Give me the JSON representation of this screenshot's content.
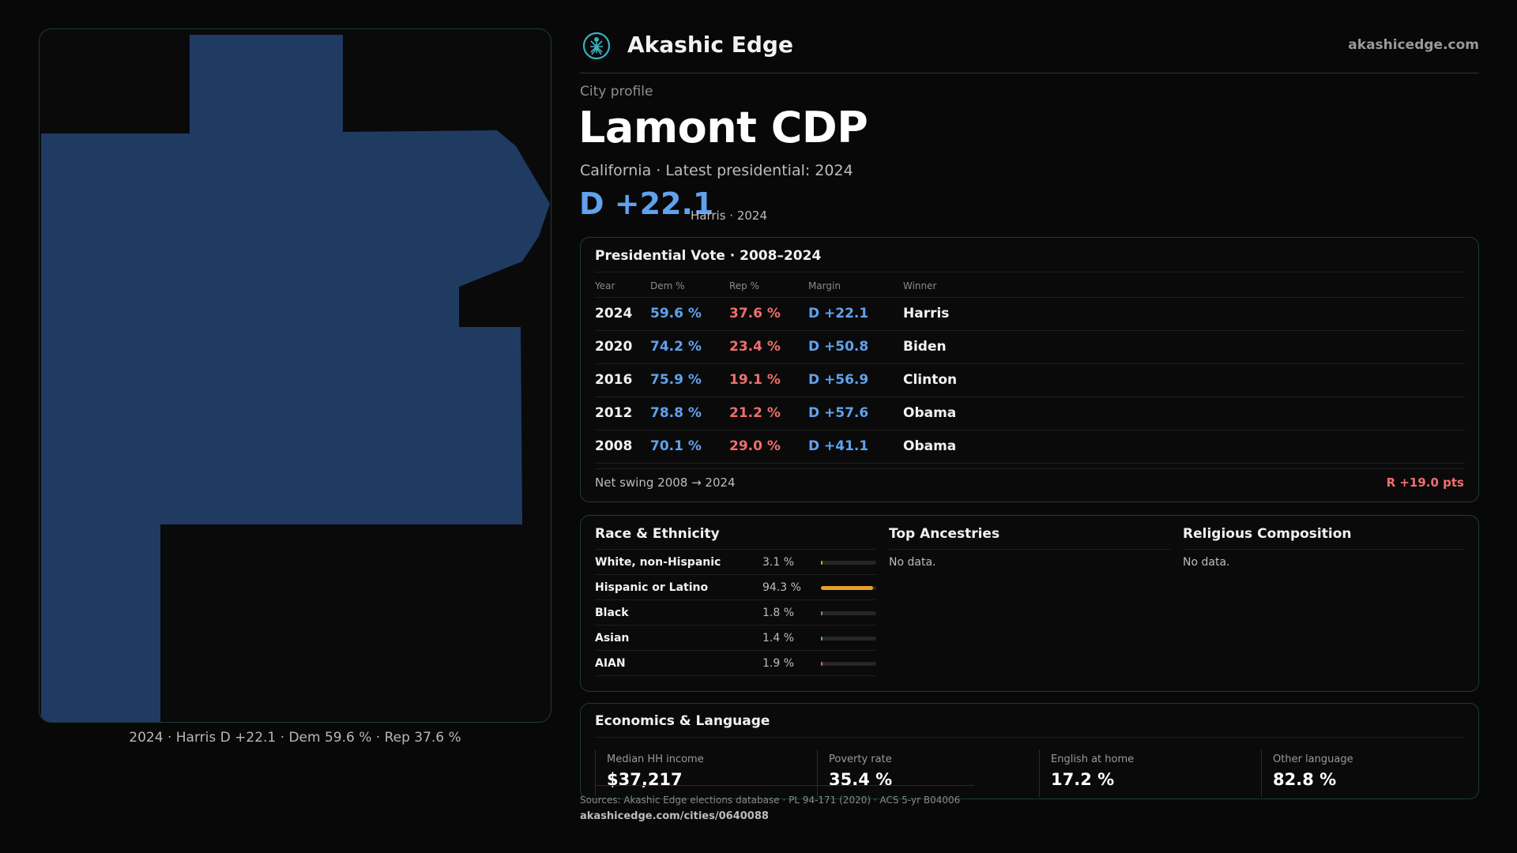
{
  "header": {
    "brand": "Akashic Edge",
    "site": "akashicedge.com"
  },
  "profile": {
    "eyebrow": "City profile",
    "title": "Lamont CDP",
    "subtitle": "California · Latest presidential: 2024",
    "margin": "D +22.1",
    "margin_note": "Harris · 2024"
  },
  "map": {
    "caption": "2024 · Harris D +22.1 · Dem 59.6 % · Rep 37.6 %",
    "fill_color": "#1f3b62"
  },
  "presidential": {
    "title": "Presidential Vote · 2008–2024",
    "headers": [
      "Year",
      "Dem %",
      "Rep %",
      "Margin",
      "Winner"
    ],
    "rows": [
      {
        "year": "2024",
        "dem": "59.6 %",
        "rep": "37.6 %",
        "margin": "D +22.1",
        "winner": "Harris"
      },
      {
        "year": "2020",
        "dem": "74.2 %",
        "rep": "23.4 %",
        "margin": "D +50.8",
        "winner": "Biden"
      },
      {
        "year": "2016",
        "dem": "75.9 %",
        "rep": "19.1 %",
        "margin": "D +56.9",
        "winner": "Clinton"
      },
      {
        "year": "2012",
        "dem": "78.8 %",
        "rep": "21.2 %",
        "margin": "D +57.6",
        "winner": "Obama"
      },
      {
        "year": "2008",
        "dem": "70.1 %",
        "rep": "29.0 %",
        "margin": "D +41.1",
        "winner": "Obama"
      }
    ],
    "swing_label": "Net swing 2008 → 2024",
    "swing_value": "R +19.0 pts"
  },
  "race": {
    "title": "Race & Ethnicity",
    "rows": [
      {
        "name": "White, non-Hispanic",
        "pct": "3.1 %",
        "value": 3.1,
        "color": "#e0a030"
      },
      {
        "name": "Hispanic or Latino",
        "pct": "94.3 %",
        "value": 94.3,
        "color": "#e3a02a"
      },
      {
        "name": "Black",
        "pct": "1.8 %",
        "value": 1.8,
        "color": "#8a7ad8"
      },
      {
        "name": "Asian",
        "pct": "1.4 %",
        "value": 1.4,
        "color": "#3fb89a"
      },
      {
        "name": "AIAN",
        "pct": "1.9 %",
        "value": 1.9,
        "color": "#d8783a"
      }
    ]
  },
  "ancestries": {
    "title": "Top Ancestries",
    "nodata": "No data."
  },
  "religion": {
    "title": "Religious Composition",
    "nodata": "No data."
  },
  "economics": {
    "title": "Economics & Language",
    "stats": [
      {
        "label": "Median HH income",
        "value": "$37,217"
      },
      {
        "label": "Poverty rate",
        "value": "35.4 %"
      },
      {
        "label": "English at home",
        "value": "17.2 %"
      },
      {
        "label": "Other language",
        "value": "82.8 %"
      }
    ]
  },
  "footer": {
    "sources": "Sources: Akashic Edge elections database · PL 94-171 (2020) · ACS 5-yr B04006",
    "url": "akashicedge.com/cities/0640088"
  }
}
